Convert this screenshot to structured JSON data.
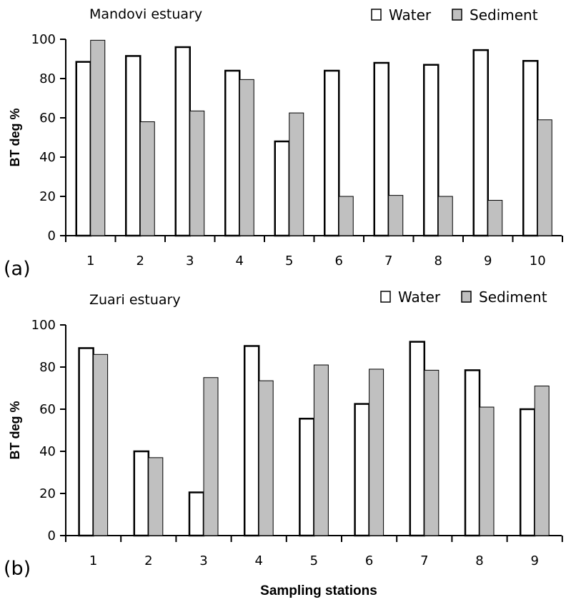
{
  "chart_data": [
    {
      "type": "bar",
      "panel_label": "(a)",
      "title": "Mandovi estuary",
      "ylabel": "BT deg %",
      "xlabel": "",
      "ylim": [
        0,
        100
      ],
      "yticks": [
        0,
        20,
        40,
        60,
        80,
        100
      ],
      "categories": [
        "1",
        "2",
        "3",
        "4",
        "5",
        "6",
        "7",
        "8",
        "9",
        "10"
      ],
      "legend_position": "top-right",
      "series": [
        {
          "name": "Water",
          "color": "#ffffff",
          "values": [
            88.5,
            91.5,
            96,
            84,
            48,
            84,
            88,
            87,
            94.5,
            89
          ]
        },
        {
          "name": "Sediment",
          "color": "#c0c0c0",
          "values": [
            99.5,
            58,
            63.5,
            79.5,
            62.5,
            20,
            20.5,
            20,
            18,
            59
          ]
        }
      ]
    },
    {
      "type": "bar",
      "panel_label": "(b)",
      "title": "Zuari estuary",
      "ylabel": "BT deg %",
      "xlabel": "Sampling stations",
      "ylim": [
        0,
        100
      ],
      "yticks": [
        0,
        20,
        40,
        60,
        80,
        100
      ],
      "categories": [
        "1",
        "2",
        "3",
        "4",
        "5",
        "6",
        "7",
        "8",
        "9"
      ],
      "legend_position": "top-right",
      "series": [
        {
          "name": "Water",
          "color": "#ffffff",
          "values": [
            89,
            40,
            20.5,
            90,
            55.5,
            62.5,
            92,
            78.5,
            60
          ]
        },
        {
          "name": "Sediment",
          "color": "#c0c0c0",
          "values": [
            86,
            37,
            75,
            73.5,
            81,
            79,
            78.5,
            61,
            71
          ]
        }
      ]
    }
  ]
}
